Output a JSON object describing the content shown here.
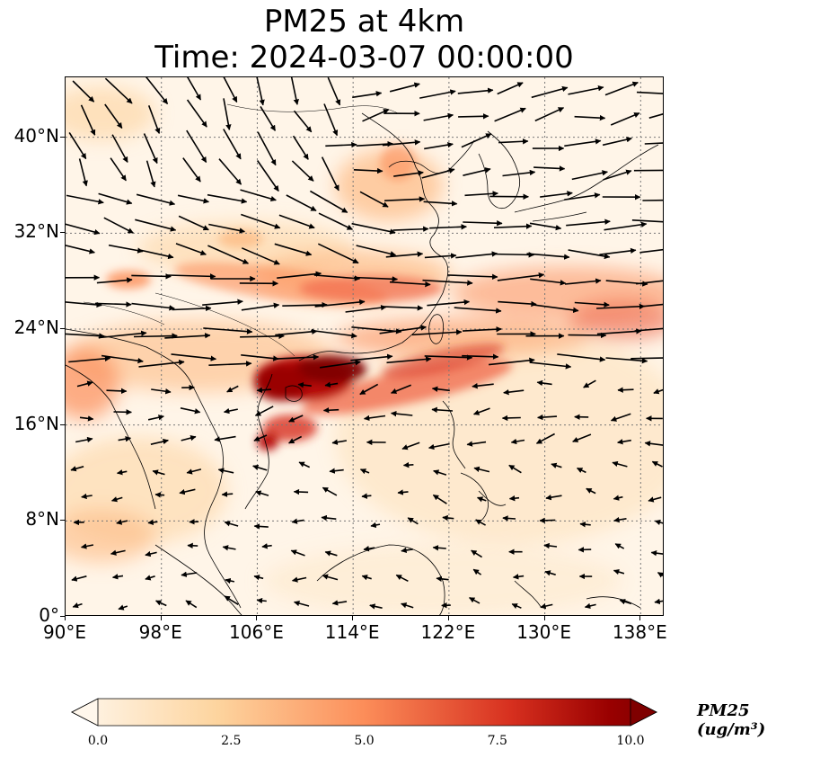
{
  "title": {
    "line1": "PM25 at 4km",
    "line2": "Time: 2024-03-07 00:00:00"
  },
  "map": {
    "lon_range": [
      90,
      140
    ],
    "lat_range": [
      0,
      45
    ],
    "lat_ticks": [
      {
        "value": 40,
        "label": "40°N"
      },
      {
        "value": 32,
        "label": "32°N"
      },
      {
        "value": 24,
        "label": "24°N"
      },
      {
        "value": 16,
        "label": "16°N"
      },
      {
        "value": 8,
        "label": "8°N"
      },
      {
        "value": 0,
        "label": "0°"
      }
    ],
    "lon_ticks": [
      {
        "value": 90,
        "label": "90°E"
      },
      {
        "value": 98,
        "label": "98°E"
      },
      {
        "value": 106,
        "label": "106°E"
      },
      {
        "value": 114,
        "label": "114°E"
      },
      {
        "value": 122,
        "label": "122°E"
      },
      {
        "value": 130,
        "label": "130°E"
      },
      {
        "value": 138,
        "label": "138°E"
      }
    ],
    "gridlines": true
  },
  "colorbar": {
    "label": "PM25 (ug/m³)",
    "ticks": [
      "0.0",
      "2.5",
      "5.0",
      "7.5",
      "10.0"
    ],
    "min": 0,
    "max": 10,
    "colors": [
      "#fff7ec",
      "#fdd49e",
      "#fc8d59",
      "#d7301f",
      "#7f0000"
    ]
  }
}
